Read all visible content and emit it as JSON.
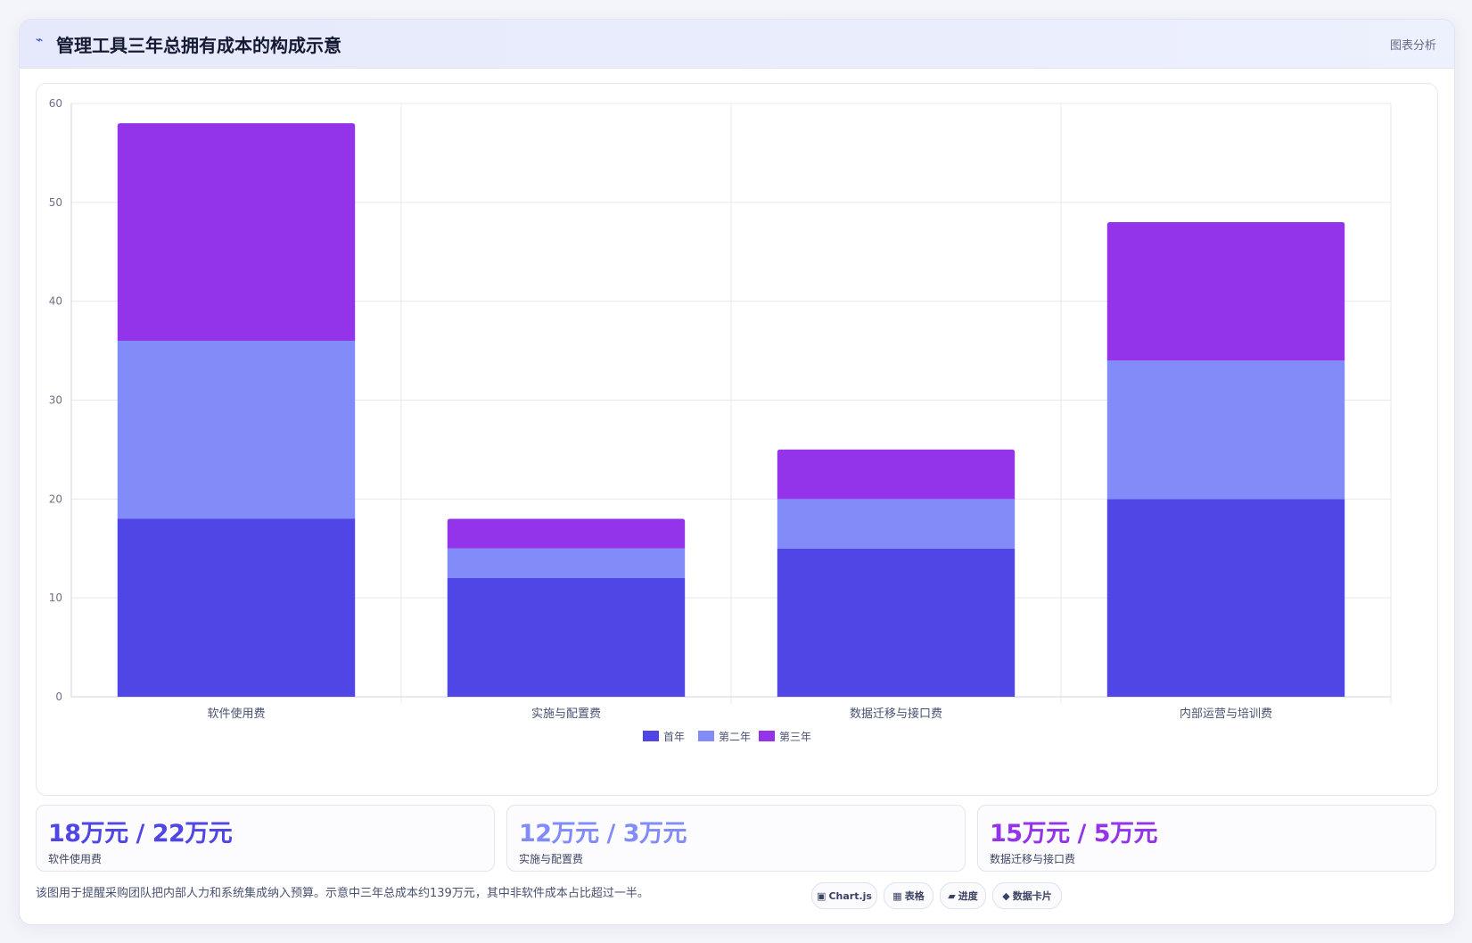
{
  "header": {
    "icon": "bolt-icon",
    "title": "管理工具三年总拥有成本的构成示意",
    "tag": "图表分析"
  },
  "chart_data": {
    "type": "bar",
    "stacked": true,
    "categories": [
      "软件使用费",
      "实施与配置费",
      "数据迁移与接口费",
      "内部运营与培训费"
    ],
    "series": [
      {
        "name": "首年",
        "values": [
          18,
          12,
          15,
          20
        ],
        "color": "#4f46e5"
      },
      {
        "name": "第二年",
        "values": [
          18,
          3,
          5,
          14
        ],
        "color": "#818cf8"
      },
      {
        "name": "第三年",
        "values": [
          22,
          3,
          5,
          14
        ],
        "color": "#9333ea"
      }
    ],
    "ylim": [
      0,
      60
    ],
    "yticks": [
      0,
      10,
      20,
      30,
      40,
      50,
      60
    ],
    "grid": true,
    "legend": "bottom-center"
  },
  "stats": [
    {
      "value": "18万元 / 22万元",
      "label": "软件使用费",
      "color": "#4f46e5"
    },
    {
      "value": "12万元 / 3万元",
      "label": "实施与配置费",
      "color": "#818cf8"
    },
    {
      "value": "15万元 / 5万元",
      "label": "数据迁移与接口费",
      "color": "#9333ea"
    }
  ],
  "footer": {
    "note": "该图用于提醒采购团队把内部人力和系统集成纳入预算。示意中三年总成本约139万元，其中非软件成本占比超过一半。",
    "chips": [
      {
        "icon": "▣",
        "label": "Chart.js"
      },
      {
        "icon": "▦",
        "label": "表格"
      },
      {
        "icon": "▰",
        "label": "进度"
      },
      {
        "icon": "◆",
        "label": "数据卡片"
      }
    ]
  }
}
